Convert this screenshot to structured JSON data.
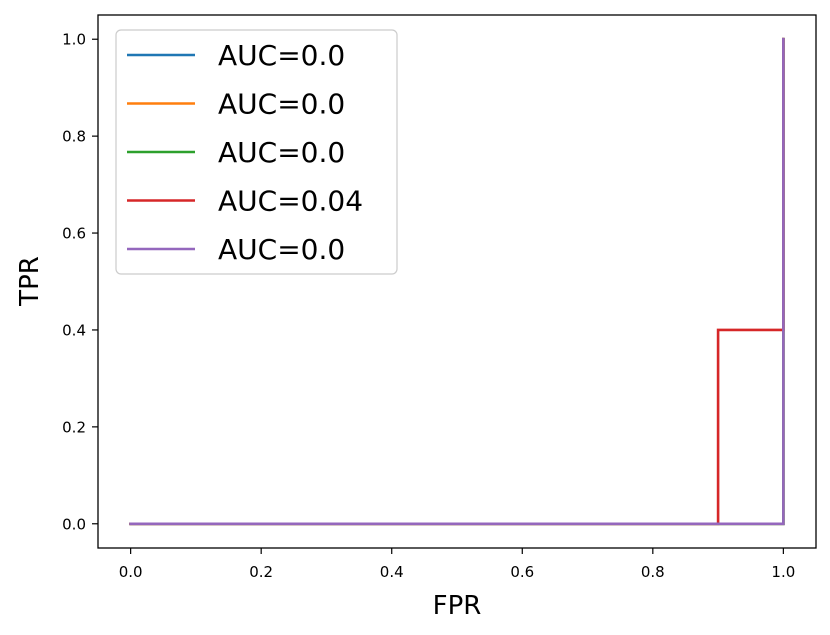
{
  "chart_data": {
    "type": "line",
    "xlabel": "FPR",
    "ylabel": "TPR",
    "xlim": [
      -0.05,
      1.05
    ],
    "ylim": [
      -0.05,
      1.05
    ],
    "xticks": [
      "0.0",
      "0.2",
      "0.4",
      "0.6",
      "0.8",
      "1.0"
    ],
    "yticks": [
      "0.0",
      "0.2",
      "0.4",
      "0.6",
      "0.8",
      "1.0"
    ],
    "grid": false,
    "legend_position": "top-left",
    "series": [
      {
        "name": "AUC=0.0",
        "color": "#1f77b4",
        "x": [
          0,
          1,
          1
        ],
        "y": [
          0,
          0,
          1
        ]
      },
      {
        "name": "AUC=0.0",
        "color": "#ff7f0e",
        "x": [
          0,
          1,
          1
        ],
        "y": [
          0,
          0,
          1
        ]
      },
      {
        "name": "AUC=0.0",
        "color": "#2ca02c",
        "x": [
          0,
          1,
          1
        ],
        "y": [
          0,
          0,
          1
        ]
      },
      {
        "name": "AUC=0.04",
        "color": "#d62728",
        "x": [
          0,
          0.9,
          0.9,
          1,
          1
        ],
        "y": [
          0,
          0,
          0.4,
          0.4,
          1
        ]
      },
      {
        "name": "AUC=0.0",
        "color": "#9467bd",
        "x": [
          0,
          1,
          1
        ],
        "y": [
          0,
          0,
          1
        ]
      }
    ]
  }
}
